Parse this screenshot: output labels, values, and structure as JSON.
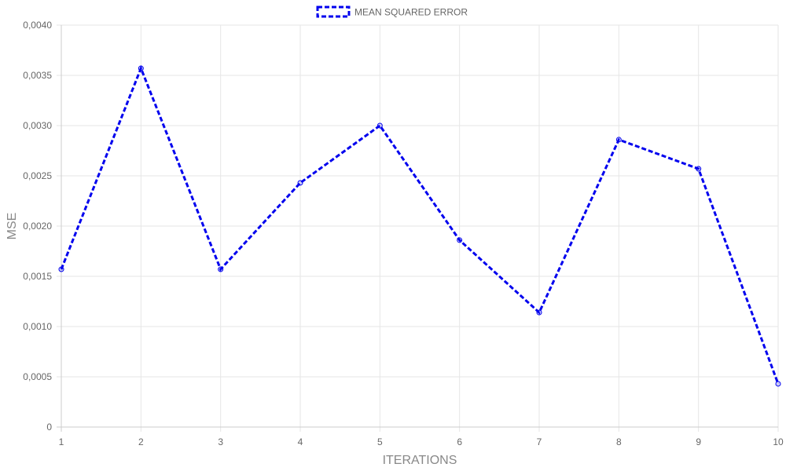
{
  "chart_data": {
    "type": "line",
    "x": [
      1,
      2,
      3,
      4,
      5,
      6,
      7,
      8,
      9,
      10
    ],
    "x_tick_labels": [
      "1",
      "2",
      "3",
      "4",
      "5",
      "6",
      "7",
      "8",
      "9",
      "10"
    ],
    "series": [
      {
        "name": "MEAN SQUARED ERROR",
        "values": [
          0.00157,
          0.00357,
          0.00157,
          0.00243,
          0.003,
          0.00186,
          0.00114,
          0.00286,
          0.00257,
          0.00043
        ],
        "color": "#0000ee",
        "line_style": "dashed"
      }
    ],
    "xlabel": "ITERATIONS",
    "ylabel": "MSE",
    "ylim": [
      0,
      0.004
    ],
    "y_ticks": [
      0,
      0.0005,
      0.001,
      0.0015,
      0.002,
      0.0025,
      0.003,
      0.0035,
      0.004
    ],
    "y_tick_labels": [
      "0",
      "0,0005",
      "0,0010",
      "0,0015",
      "0,0020",
      "0,0025",
      "0,0030",
      "0,0035",
      "0,0040"
    ],
    "grid": true,
    "legend_position": "top-center"
  }
}
